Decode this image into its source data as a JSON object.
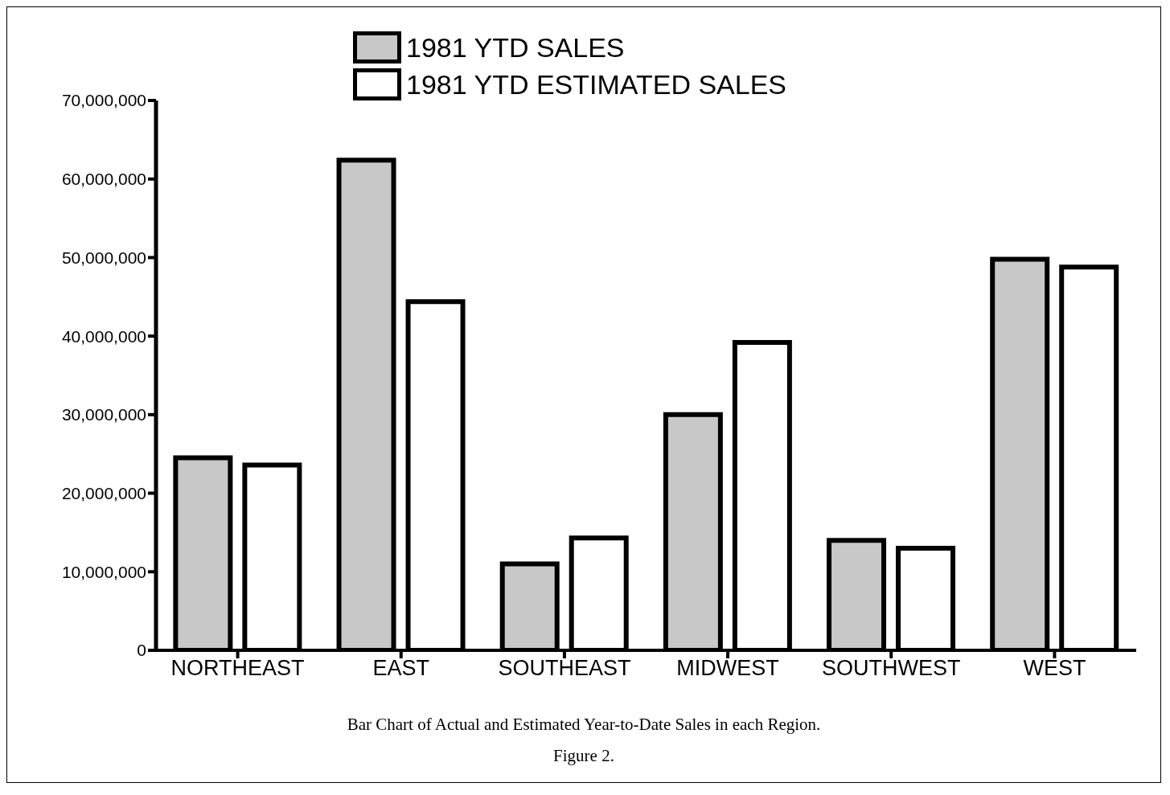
{
  "chart_data": {
    "type": "bar",
    "categories": [
      "NORTHEAST",
      "EAST",
      "SOUTHEAST",
      "MIDWEST",
      "SOUTHWEST",
      "WEST"
    ],
    "series": [
      {
        "name": "1981 YTD SALES",
        "color": "#c8c8c8",
        "values": [
          24500000,
          62400000,
          11000000,
          30000000,
          14000000,
          49800000
        ]
      },
      {
        "name": "1981 YTD ESTIMATED SALES",
        "color": "#ffffff",
        "values": [
          23600000,
          44400000,
          14300000,
          39200000,
          13000000,
          48800000
        ]
      }
    ],
    "ylim": [
      0,
      70000000
    ],
    "yticks": [
      {
        "value": 0,
        "label": "0"
      },
      {
        "value": 10000000,
        "label": "10,000,000"
      },
      {
        "value": 20000000,
        "label": "20,000,000"
      },
      {
        "value": 30000000,
        "label": "30,000,000"
      },
      {
        "value": 40000000,
        "label": "40,000,000"
      },
      {
        "value": 50000000,
        "label": "50,000,000"
      },
      {
        "value": 60000000,
        "label": "60,000,000"
      },
      {
        "value": 70000000,
        "label": "70,000,000"
      }
    ],
    "grid": false,
    "legend": "top",
    "annotations": [
      "Bar Chart of Actual and Estimated Year-to-Date Sales in each Region.",
      "Figure 2."
    ]
  }
}
